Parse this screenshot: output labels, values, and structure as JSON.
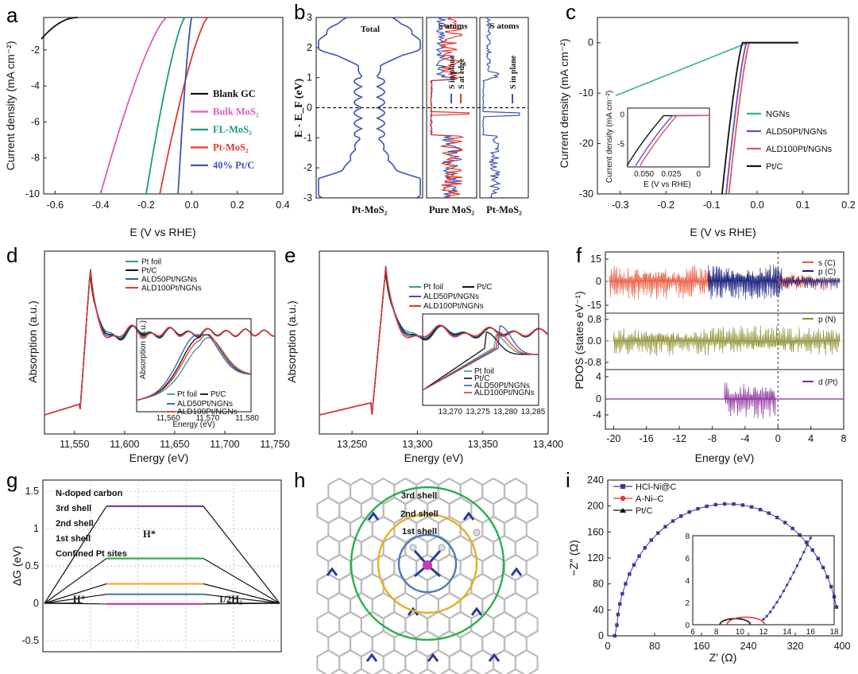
{
  "panels": [
    {
      "id": "a",
      "label": "a"
    },
    {
      "id": "b",
      "label": "b"
    },
    {
      "id": "c",
      "label": "c"
    },
    {
      "id": "d",
      "label": "d"
    },
    {
      "id": "e",
      "label": "e"
    },
    {
      "id": "f",
      "label": "f"
    },
    {
      "id": "g",
      "label": "g"
    },
    {
      "id": "h",
      "label": "h"
    },
    {
      "id": "i",
      "label": "i"
    }
  ],
  "chart_data": [
    {
      "id": "a",
      "type": "line",
      "xlabel": "E (V vs RHE)",
      "ylabel": "Current density (mA cm⁻²)",
      "xlim": [
        -0.65,
        0.4
      ],
      "ylim": [
        -10,
        -0.2
      ],
      "xticks": [
        "-0.6",
        "-0.4",
        "-0.2",
        "0.0",
        "0.2",
        "0.4"
      ],
      "yticks": [
        "-2",
        "-4",
        "-6",
        "-8",
        "-10"
      ],
      "series": [
        {
          "name": "Blank GC",
          "color": "#111111",
          "onset": -0.5,
          "end": -0.66,
          "shape": "gc"
        },
        {
          "name": "Bulk MoS₂",
          "color": "#d65fbf",
          "onset": -0.11,
          "end": -0.4
        },
        {
          "name": "FL-MoS₂",
          "color": "#1a9a87",
          "onset": -0.03,
          "end": -0.2
        },
        {
          "name": "Pt-MoS₂",
          "color": "#e0382c",
          "onset": 0.07,
          "end": -0.14
        },
        {
          "name": "40% Pt/C",
          "color": "#3a55b4",
          "onset": 0.0,
          "end": -0.06
        }
      ]
    },
    {
      "id": "b",
      "type": "line",
      "ylabel": "E - E_F (eV)",
      "ylim": [
        -3,
        3
      ],
      "yticks": [
        "3",
        "2",
        "1",
        "0",
        "-1",
        "-2",
        "-3"
      ],
      "subpanels": [
        {
          "title": "Total",
          "xlabel": "Pt-MoS₂",
          "series": [
            {
              "name": "Total",
              "color": "#3a55b4"
            }
          ]
        },
        {
          "title": "S atoms",
          "xlabel": "Pure MoS₂",
          "series": [
            {
              "name": "S in plane",
              "color": "#3a55b4"
            },
            {
              "name": "S at edge",
              "color": "#e0382c"
            }
          ]
        },
        {
          "title": "S atoms",
          "xlabel": "Pt-MoS₂",
          "series": [
            {
              "name": "S in plane",
              "color": "#3a55b4"
            }
          ]
        }
      ]
    },
    {
      "id": "c",
      "type": "line",
      "xlabel": "E (V vs RHE)",
      "ylabel": "Current density (mA cm⁻²)",
      "xlim": [
        -0.35,
        0.2
      ],
      "ylim": [
        -30,
        5
      ],
      "xticks": [
        "-0.3",
        "-0.2",
        "-0.1",
        "0.0",
        "0.1",
        "0.2"
      ],
      "yticks": [
        "0",
        "-10",
        "-20",
        "-30"
      ],
      "series": [
        {
          "name": "NGNs",
          "color": "#2fb3a0"
        },
        {
          "name": "ALD50Pt/NGNs",
          "color": "#6b4fb0"
        },
        {
          "name": "ALD100Pt/NGNs",
          "color": "#e0565a"
        },
        {
          "name": "Pt/C",
          "color": "#111111"
        }
      ],
      "inset": {
        "ylabel": "Current density (mA cm⁻²)",
        "xlabel": "E (V vs RHE)",
        "xticks": [
          "0.050",
          "0.025",
          "0"
        ],
        "yticks": [
          "0",
          "-5"
        ]
      }
    },
    {
      "id": "d",
      "type": "line",
      "xlabel": "Energy (eV)",
      "ylabel": "Absorption (a.u.)",
      "xlim": [
        11520,
        11750
      ],
      "xticks": [
        "11,550",
        "11,600",
        "11,650",
        "11,700",
        "11,750"
      ],
      "series": [
        {
          "name": "Pt foil",
          "color": "#3a9a8a"
        },
        {
          "name": "Pt/C",
          "color": "#111111"
        },
        {
          "name": "ALD50Pt/NGNs",
          "color": "#3a55b4"
        },
        {
          "name": "ALD100Pt/NGNs",
          "color": "#e0382c"
        }
      ],
      "inset": {
        "xlabel": "Energy (eV)",
        "ylabel": "Absorption (a.u.)",
        "xticks": [
          "11,560",
          "11,570",
          "11,580"
        ]
      }
    },
    {
      "id": "e",
      "type": "line",
      "xlabel": "Energy (eV)",
      "ylabel": "Absorption (a.u.)",
      "xlim": [
        13225,
        13400
      ],
      "xticks": [
        "13,250",
        "13,300",
        "13,350",
        "13,400"
      ],
      "series": [
        {
          "name": "Pt foil",
          "color": "#3a9a8a"
        },
        {
          "name": "Pt/C",
          "color": "#111111"
        },
        {
          "name": "ALD50Pt/NGNs",
          "color": "#3a55b4"
        },
        {
          "name": "ALD100Pt/NGNs",
          "color": "#e0382c"
        }
      ],
      "inset": {
        "xticks": [
          "13,270",
          "13,275",
          "13,280",
          "13,285"
        ]
      }
    },
    {
      "id": "f",
      "type": "area",
      "xlabel": "Energy (eV)",
      "ylabel": "PDOS (states eV⁻¹)",
      "xlim": [
        -21,
        8
      ],
      "xticks": [
        "-20",
        "-16",
        "-12",
        "-8",
        "-4",
        "0",
        "4",
        "8"
      ],
      "rows": [
        {
          "yticks": [
            "15",
            "0",
            "-15"
          ],
          "legend": [
            {
              "name": "s (C)",
              "color": "#e8563a"
            },
            {
              "name": "p (C)",
              "color": "#1a237e"
            }
          ]
        },
        {
          "yticks": [
            "0.8",
            "0.0",
            "-0.8"
          ],
          "legend": [
            {
              "name": "p (N)",
              "color": "#8a8a2a"
            }
          ]
        },
        {
          "yticks": [
            "4",
            "0",
            "-4"
          ],
          "legend": [
            {
              "name": "d (Pt)",
              "color": "#8a2a9a"
            }
          ]
        }
      ]
    },
    {
      "id": "g",
      "type": "line",
      "ylabel": "ΔG (eV)",
      "ylim": [
        -0.65,
        1.65
      ],
      "yticks": [
        "1.5",
        "1",
        "0.5",
        "0",
        "-0.5"
      ],
      "xticklabels": [
        "H⁺",
        "1/2H₂"
      ],
      "peak_label": "H*",
      "series": [
        {
          "name": "N-doped carbon",
          "color": "#7b3fa6",
          "dG": 1.3
        },
        {
          "name": "3rd shell",
          "color": "#2ab04a",
          "dG": 0.6
        },
        {
          "name": "2nd shell",
          "color": "#e6b020",
          "dG": 0.26
        },
        {
          "name": "1st shell",
          "color": "#4a7ab8",
          "dG": 0.12
        },
        {
          "name": "Confined Pt sites",
          "color": "#d43ea8",
          "dG": -0.01
        }
      ]
    },
    {
      "id": "h",
      "type": "diagram",
      "labels": [
        {
          "name": "3rd shell",
          "color": "#2ab04a"
        },
        {
          "name": "2nd shell",
          "color": "#e6b020"
        },
        {
          "name": "1st shell",
          "color": "#4a7ab8"
        }
      ]
    },
    {
      "id": "i",
      "type": "scatter",
      "xlabel": "Z′ (Ω)",
      "ylabel": "−Z″ (Ω)",
      "xlim": [
        0,
        400
      ],
      "ylim": [
        0,
        240
      ],
      "xticks": [
        "0",
        "80",
        "160",
        "240",
        "320",
        "400"
      ],
      "yticks": [
        "240",
        "200",
        "160",
        "120",
        "80",
        "40",
        "0"
      ],
      "series": [
        {
          "name": "HCl-Ni@C",
          "color": "#3a3aa0",
          "marker": "square"
        },
        {
          "name": "A-Ni–C",
          "color": "#e0382c",
          "marker": "circle"
        },
        {
          "name": "Pt/C",
          "color": "#111111",
          "marker": "triangle"
        }
      ],
      "inset": {
        "xticks": [
          "6",
          "8",
          "10",
          "12",
          "14",
          "16",
          "18"
        ],
        "yticks": [
          "8",
          "6",
          "4",
          "2",
          "0"
        ]
      }
    }
  ]
}
